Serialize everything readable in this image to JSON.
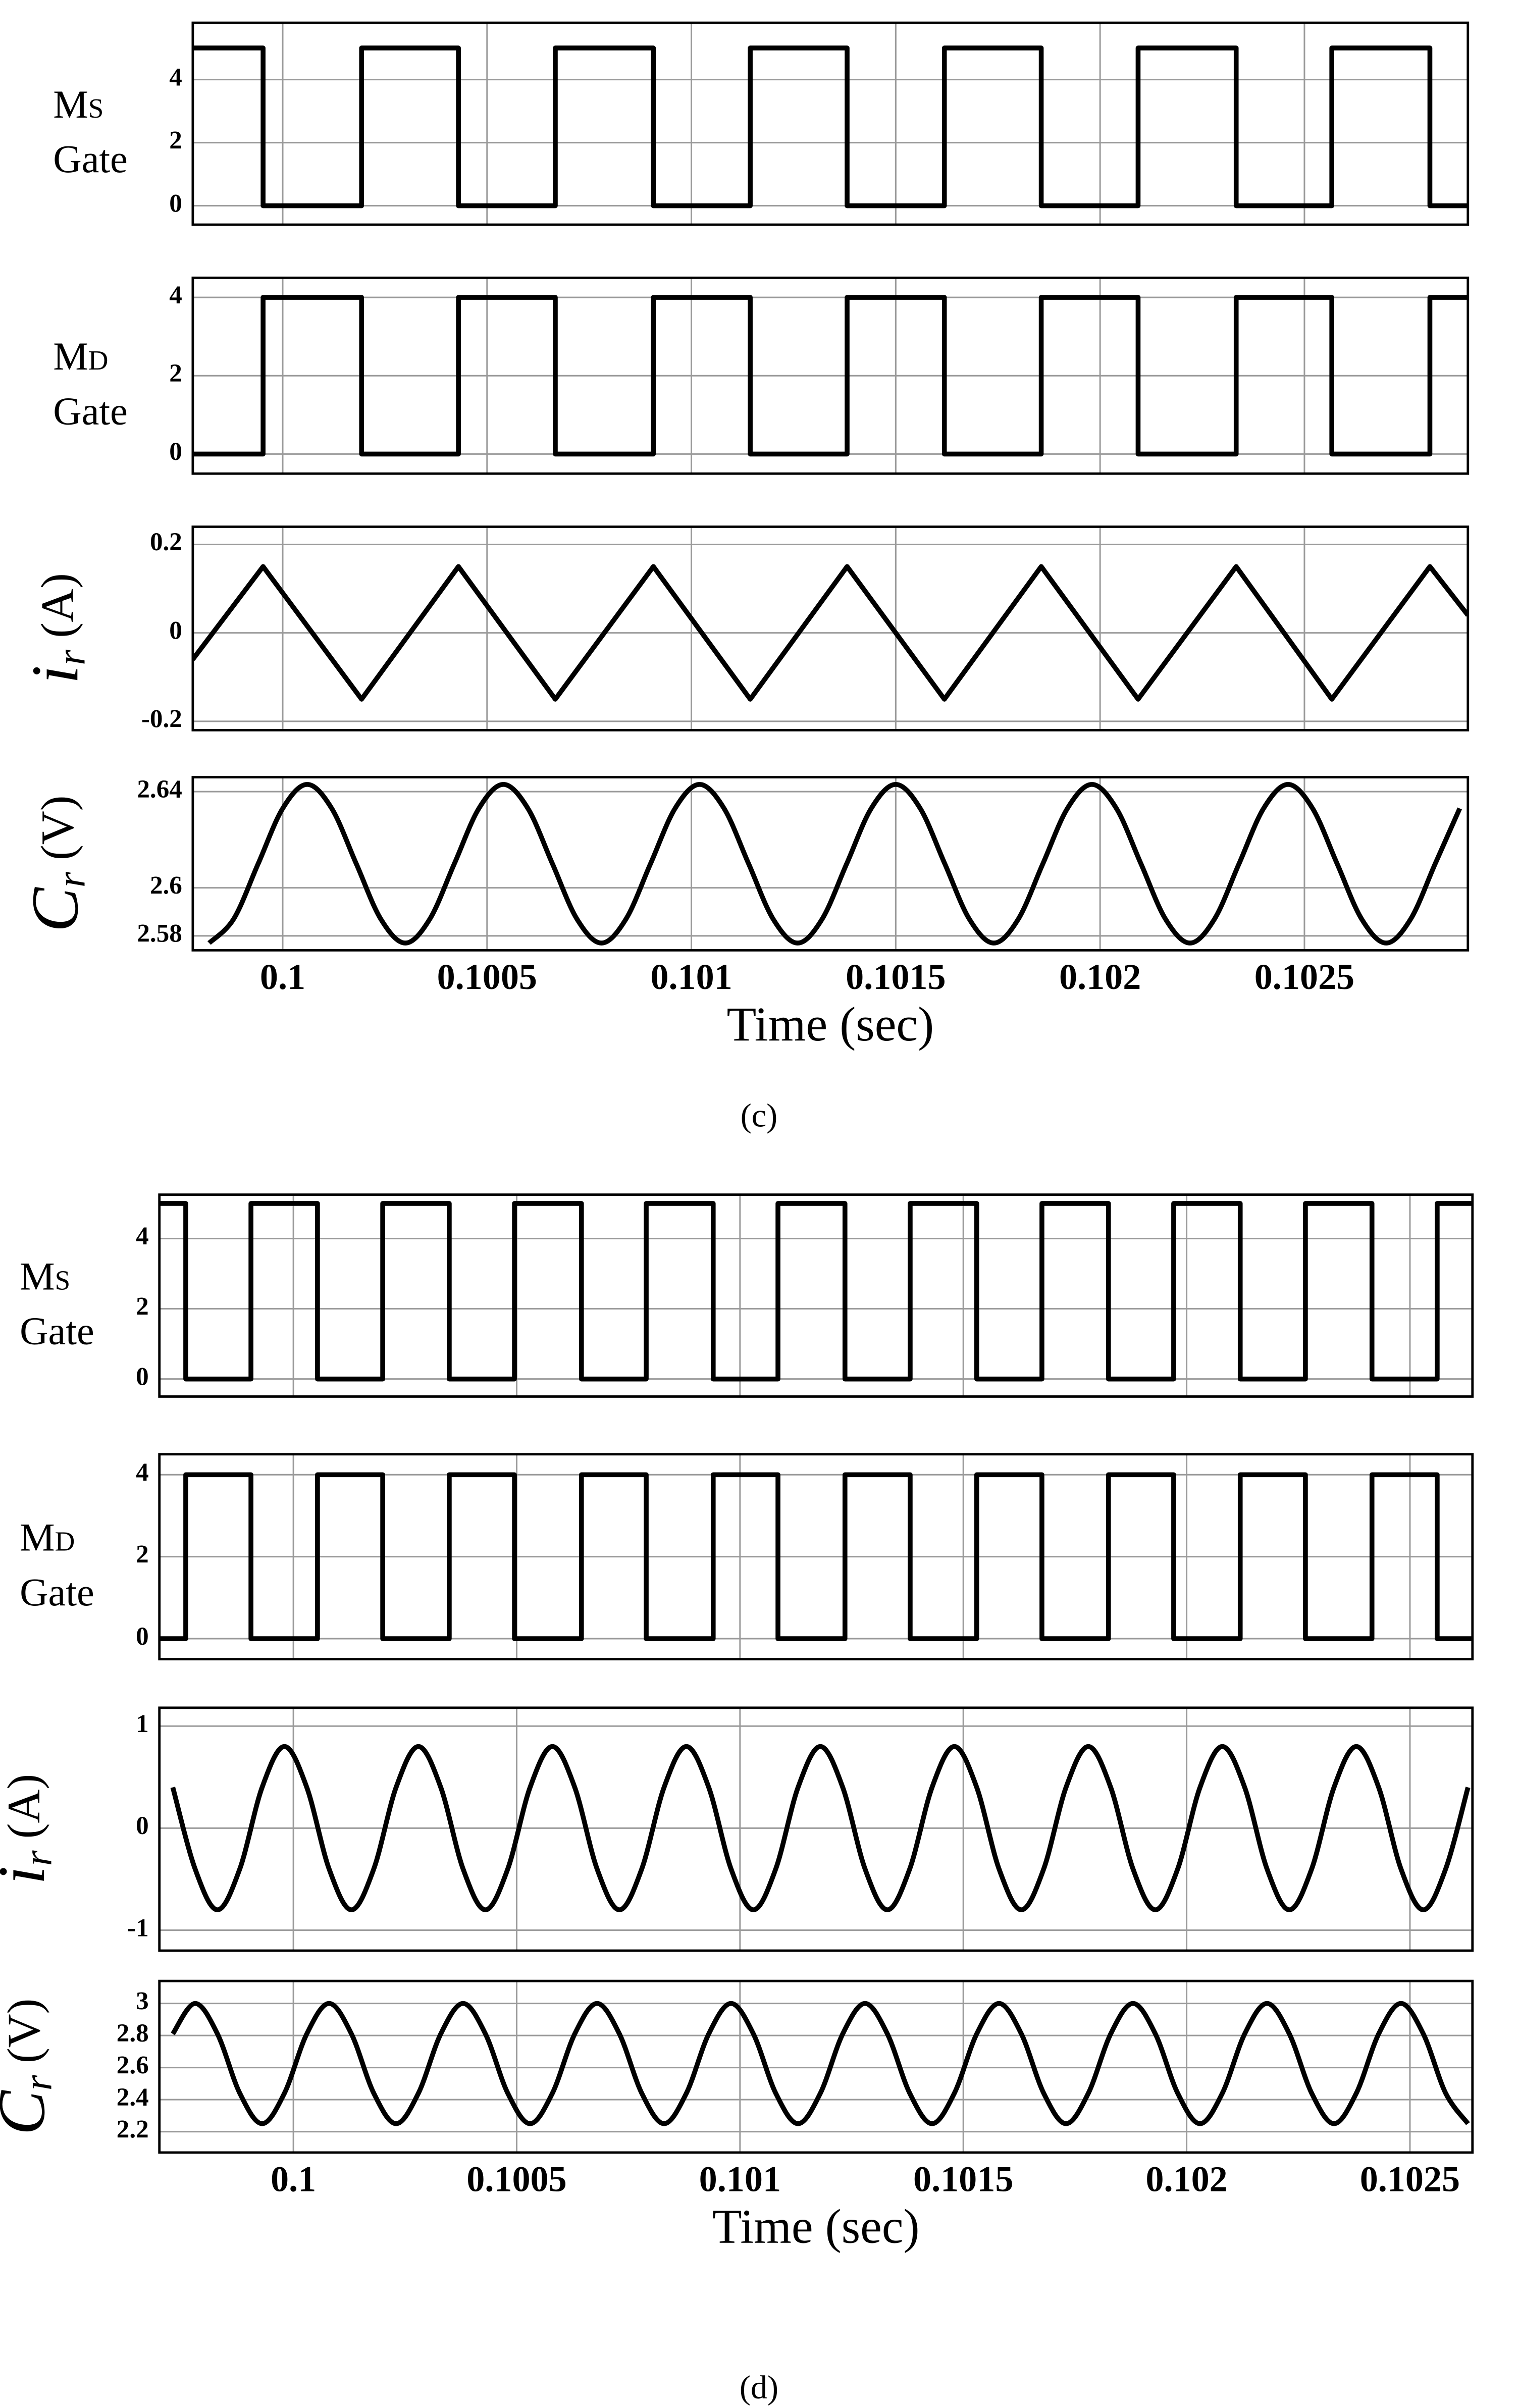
{
  "captions": [
    "(c)",
    "(d)"
  ],
  "chart_data": [
    {
      "type": "line",
      "ylabel": [
        "Ms",
        "Gate"
      ],
      "color": "#000000",
      "grid": true,
      "smooth": false,
      "xtick_labels": false,
      "xlim": [
        0.09978,
        0.1029
      ],
      "xticks": [
        0.1,
        0.1005,
        0.101,
        0.1015,
        0.102,
        0.1025
      ],
      "ylim": [
        -0.6,
        5.8
      ],
      "yticks": [
        0,
        2,
        4
      ],
      "x": [
        0.09978,
        0.099952,
        0.099952,
        0.100193,
        0.100193,
        0.10043,
        0.10043,
        0.100667,
        0.100667,
        0.100907,
        0.100907,
        0.101144,
        0.101144,
        0.101381,
        0.101381,
        0.101619,
        0.101619,
        0.101856,
        0.101856,
        0.102093,
        0.102093,
        0.102333,
        0.102333,
        0.102567,
        0.102567,
        0.102807,
        0.102807,
        0.1029
      ],
      "values": [
        5,
        5,
        0,
        0,
        5,
        5,
        0,
        0,
        5,
        5,
        0,
        0,
        5,
        5,
        0,
        0,
        5,
        5,
        0,
        0,
        5,
        5,
        0,
        0,
        5,
        5,
        0,
        0
      ]
    },
    {
      "type": "line",
      "ylabel": [
        "Md",
        "Gate"
      ],
      "color": "#000000",
      "grid": true,
      "smooth": false,
      "xtick_labels": false,
      "xlim": [
        0.09978,
        0.1029
      ],
      "xticks": [
        0.1,
        0.1005,
        0.101,
        0.1015,
        0.102,
        0.1025
      ],
      "ylim": [
        -0.5,
        4.5
      ],
      "yticks": [
        0,
        2,
        4
      ],
      "x": [
        0.09978,
        0.099952,
        0.099952,
        0.100193,
        0.100193,
        0.10043,
        0.10043,
        0.100667,
        0.100667,
        0.100907,
        0.100907,
        0.101144,
        0.101144,
        0.101381,
        0.101381,
        0.101619,
        0.101619,
        0.101856,
        0.101856,
        0.102093,
        0.102093,
        0.102333,
        0.102333,
        0.102567,
        0.102567,
        0.102807,
        0.102807,
        0.1029
      ],
      "values": [
        0,
        0,
        4,
        4,
        0,
        0,
        4,
        4,
        0,
        0,
        4,
        4,
        0,
        0,
        4,
        4,
        0,
        0,
        4,
        4,
        0,
        0,
        4,
        4,
        0,
        0,
        4,
        4
      ]
    },
    {
      "type": "line",
      "ylabel": "ir (A)",
      "color": "#000000",
      "grid": true,
      "smooth": false,
      "xtick_labels": false,
      "xlim": [
        0.09978,
        0.1029
      ],
      "xticks": [
        0.1,
        0.1005,
        0.101,
        0.1015,
        0.102,
        0.1025
      ],
      "ylim": [
        -0.22,
        0.24
      ],
      "yticks": [
        -0.2,
        0,
        0.2
      ],
      "x": [
        0.09978,
        0.099952,
        0.100193,
        0.10043,
        0.100667,
        0.100907,
        0.101144,
        0.101381,
        0.101619,
        0.101856,
        0.102093,
        0.102333,
        0.102567,
        0.102807,
        0.1029
      ],
      "values": [
        -0.06,
        0.15,
        -0.15,
        0.15,
        -0.15,
        0.15,
        -0.15,
        0.15,
        -0.15,
        0.15,
        -0.15,
        0.15,
        -0.15,
        0.15,
        0.04
      ]
    },
    {
      "type": "line",
      "ylabel": "Cr (V)",
      "xlabel": "Time (sec)",
      "color": "#000000",
      "grid": true,
      "smooth": true,
      "xtick_labels": true,
      "xlim": [
        0.09978,
        0.1029
      ],
      "xticks": [
        0.1,
        0.1005,
        0.101,
        0.1015,
        0.102,
        0.1025
      ],
      "ylim": [
        2.574,
        2.646
      ],
      "yticks": [
        2.58,
        2.6,
        2.64
      ],
      "x": [
        0.09982,
        0.09988,
        0.09994,
        0.1,
        0.10006,
        0.10012,
        0.10018,
        0.10024,
        0.1003,
        0.10036,
        0.10042,
        0.10048,
        0.10054,
        0.1006,
        0.10066,
        0.10072,
        0.10078,
        0.10084,
        0.1009,
        0.10096,
        0.10102,
        0.10108,
        0.10114,
        0.1012,
        0.10126,
        0.10132,
        0.10138,
        0.10144,
        0.1015,
        0.10156,
        0.10162,
        0.10168,
        0.10174,
        0.1018,
        0.10186,
        0.10192,
        0.10198,
        0.10204,
        0.1021,
        0.10216,
        0.10222,
        0.10228,
        0.10234,
        0.1024,
        0.10246,
        0.10252,
        0.10258,
        0.10264,
        0.1027,
        0.10276,
        0.10282,
        0.10288
      ],
      "values": [
        2.577,
        2.587,
        2.61,
        2.633,
        2.643,
        2.633,
        2.61,
        2.587,
        2.577,
        2.587,
        2.61,
        2.633,
        2.643,
        2.633,
        2.61,
        2.587,
        2.577,
        2.587,
        2.61,
        2.633,
        2.643,
        2.633,
        2.61,
        2.587,
        2.577,
        2.587,
        2.61,
        2.633,
        2.643,
        2.633,
        2.61,
        2.587,
        2.577,
        2.587,
        2.61,
        2.633,
        2.643,
        2.633,
        2.61,
        2.587,
        2.577,
        2.587,
        2.61,
        2.633,
        2.643,
        2.633,
        2.61,
        2.587,
        2.577,
        2.587,
        2.61,
        2.633
      ]
    },
    {
      "type": "line",
      "ylabel": [
        "Ms",
        "Gate"
      ],
      "color": "#000000",
      "grid": true,
      "smooth": false,
      "xtick_labels": false,
      "xlim": [
        0.0997,
        0.10264
      ],
      "xticks": [
        0.1,
        0.1005,
        0.101,
        0.1015,
        0.102,
        0.1025
      ],
      "ylim": [
        -0.5,
        5.25
      ],
      "yticks": [
        0,
        2,
        4
      ],
      "x": [
        0.0997,
        0.099759,
        0.099759,
        0.099905,
        0.099905,
        0.100054,
        0.100054,
        0.1002,
        0.1002,
        0.100349,
        0.100349,
        0.100495,
        0.100495,
        0.100645,
        0.100645,
        0.10079,
        0.10079,
        0.10094,
        0.10094,
        0.101085,
        0.101085,
        0.101235,
        0.101235,
        0.101381,
        0.101381,
        0.10153,
        0.10153,
        0.101676,
        0.101676,
        0.101825,
        0.101825,
        0.101971,
        0.101971,
        0.10212,
        0.10212,
        0.102266,
        0.102266,
        0.102415,
        0.102415,
        0.102561,
        0.102561,
        0.10264
      ],
      "values": [
        5,
        5,
        0,
        0,
        5,
        5,
        0,
        0,
        5,
        5,
        0,
        0,
        5,
        5,
        0,
        0,
        5,
        5,
        0,
        0,
        5,
        5,
        0,
        0,
        5,
        5,
        0,
        0,
        5,
        5,
        0,
        0,
        5,
        5,
        0,
        0,
        5,
        5,
        0,
        0,
        5,
        5
      ]
    },
    {
      "type": "line",
      "ylabel": [
        "Md",
        "Gate"
      ],
      "color": "#000000",
      "grid": true,
      "smooth": false,
      "xtick_labels": false,
      "xlim": [
        0.0997,
        0.10264
      ],
      "xticks": [
        0.1,
        0.1005,
        0.101,
        0.1015,
        0.102,
        0.1025
      ],
      "ylim": [
        -0.5,
        4.5
      ],
      "yticks": [
        0,
        2,
        4
      ],
      "x": [
        0.0997,
        0.099759,
        0.099759,
        0.099905,
        0.099905,
        0.100054,
        0.100054,
        0.1002,
        0.1002,
        0.100349,
        0.100349,
        0.100495,
        0.100495,
        0.100645,
        0.100645,
        0.10079,
        0.10079,
        0.10094,
        0.10094,
        0.101085,
        0.101085,
        0.101235,
        0.101235,
        0.101381,
        0.101381,
        0.10153,
        0.10153,
        0.101676,
        0.101676,
        0.101825,
        0.101825,
        0.101971,
        0.101971,
        0.10212,
        0.10212,
        0.102266,
        0.102266,
        0.102415,
        0.102415,
        0.102561,
        0.102561,
        0.10264
      ],
      "values": [
        0,
        0,
        4,
        4,
        0,
        0,
        4,
        4,
        0,
        0,
        4,
        4,
        0,
        0,
        4,
        4,
        0,
        0,
        4,
        4,
        0,
        0,
        4,
        4,
        0,
        0,
        4,
        4,
        0,
        0,
        4,
        4,
        0,
        0,
        4,
        4,
        0,
        0,
        4,
        4,
        0,
        0
      ]
    },
    {
      "type": "line",
      "ylabel": "ir (A)",
      "color": "#000000",
      "grid": true,
      "smooth": true,
      "xtick_labels": false,
      "xlim": [
        0.0997,
        0.10264
      ],
      "xticks": [
        0.1,
        0.1005,
        0.101,
        0.1015,
        0.102,
        0.1025
      ],
      "ylim": [
        -1.2,
        1.18
      ],
      "yticks": [
        -1,
        0,
        1
      ],
      "x": [
        0.09973,
        0.09978,
        0.09983,
        0.09988,
        0.09993,
        0.09998,
        0.10003,
        0.10008,
        0.10013,
        0.10018,
        0.10023,
        0.10028,
        0.10033,
        0.10038,
        0.10043,
        0.10048,
        0.10053,
        0.10058,
        0.10063,
        0.10068,
        0.10073,
        0.10078,
        0.10083,
        0.10088,
        0.10093,
        0.10098,
        0.10103,
        0.10108,
        0.10113,
        0.10118,
        0.10123,
        0.10128,
        0.10133,
        0.10138,
        0.10143,
        0.10148,
        0.10153,
        0.10158,
        0.10163,
        0.10168,
        0.10173,
        0.10178,
        0.10183,
        0.10188,
        0.10193,
        0.10198,
        0.10203,
        0.10208,
        0.10213,
        0.10218,
        0.10223,
        0.10228,
        0.10233,
        0.10238,
        0.10243,
        0.10248,
        0.10253,
        0.10258,
        0.10263
      ],
      "values": [
        0.4,
        -0.4,
        -0.8,
        -0.4,
        0.4,
        0.8,
        0.4,
        -0.4,
        -0.8,
        -0.4,
        0.4,
        0.8,
        0.4,
        -0.4,
        -0.8,
        -0.4,
        0.4,
        0.8,
        0.4,
        -0.4,
        -0.8,
        -0.4,
        0.4,
        0.8,
        0.4,
        -0.4,
        -0.8,
        -0.4,
        0.4,
        0.8,
        0.4,
        -0.4,
        -0.8,
        -0.4,
        0.4,
        0.8,
        0.4,
        -0.4,
        -0.8,
        -0.4,
        0.4,
        0.8,
        0.4,
        -0.4,
        -0.8,
        -0.4,
        0.4,
        0.8,
        0.4,
        -0.4,
        -0.8,
        -0.4,
        0.4,
        0.8,
        0.4,
        -0.4,
        -0.8,
        -0.4,
        0.4
      ]
    },
    {
      "type": "line",
      "ylabel": "Cr (V)",
      "xlabel": "Time (sec)",
      "color": "#000000",
      "grid": true,
      "smooth": true,
      "xtick_labels": true,
      "xlim": [
        0.0997,
        0.10264
      ],
      "xticks": [
        0.1,
        0.1005,
        0.101,
        0.1015,
        0.102,
        0.1025
      ],
      "ylim": [
        2.07,
        3.14
      ],
      "yticks": [
        2.2,
        2.4,
        2.6,
        2.8,
        3
      ],
      "x": [
        0.09973,
        0.09978,
        0.09983,
        0.09988,
        0.09993,
        0.09998,
        0.10003,
        0.10008,
        0.10013,
        0.10018,
        0.10023,
        0.10028,
        0.10033,
        0.10038,
        0.10043,
        0.10048,
        0.10053,
        0.10058,
        0.10063,
        0.10068,
        0.10073,
        0.10078,
        0.10083,
        0.10088,
        0.10093,
        0.10098,
        0.10103,
        0.10108,
        0.10113,
        0.10118,
        0.10123,
        0.10128,
        0.10133,
        0.10138,
        0.10143,
        0.10148,
        0.10153,
        0.10158,
        0.10163,
        0.10168,
        0.10173,
        0.10178,
        0.10183,
        0.10188,
        0.10193,
        0.10198,
        0.10203,
        0.10208,
        0.10213,
        0.10218,
        0.10223,
        0.10228,
        0.10233,
        0.10238,
        0.10243,
        0.10248,
        0.10253,
        0.10258,
        0.10263
      ],
      "values": [
        2.81,
        3,
        2.81,
        2.44,
        2.25,
        2.44,
        2.81,
        3,
        2.81,
        2.44,
        2.25,
        2.44,
        2.81,
        3,
        2.81,
        2.44,
        2.25,
        2.44,
        2.81,
        3,
        2.81,
        2.44,
        2.25,
        2.44,
        2.81,
        3,
        2.81,
        2.44,
        2.25,
        2.44,
        2.81,
        3,
        2.81,
        2.44,
        2.25,
        2.44,
        2.81,
        3,
        2.81,
        2.44,
        2.25,
        2.44,
        2.81,
        3,
        2.81,
        2.44,
        2.25,
        2.44,
        2.81,
        3,
        2.81,
        2.44,
        2.25,
        2.44,
        2.81,
        3,
        2.81,
        2.44,
        2.25
      ]
    }
  ]
}
